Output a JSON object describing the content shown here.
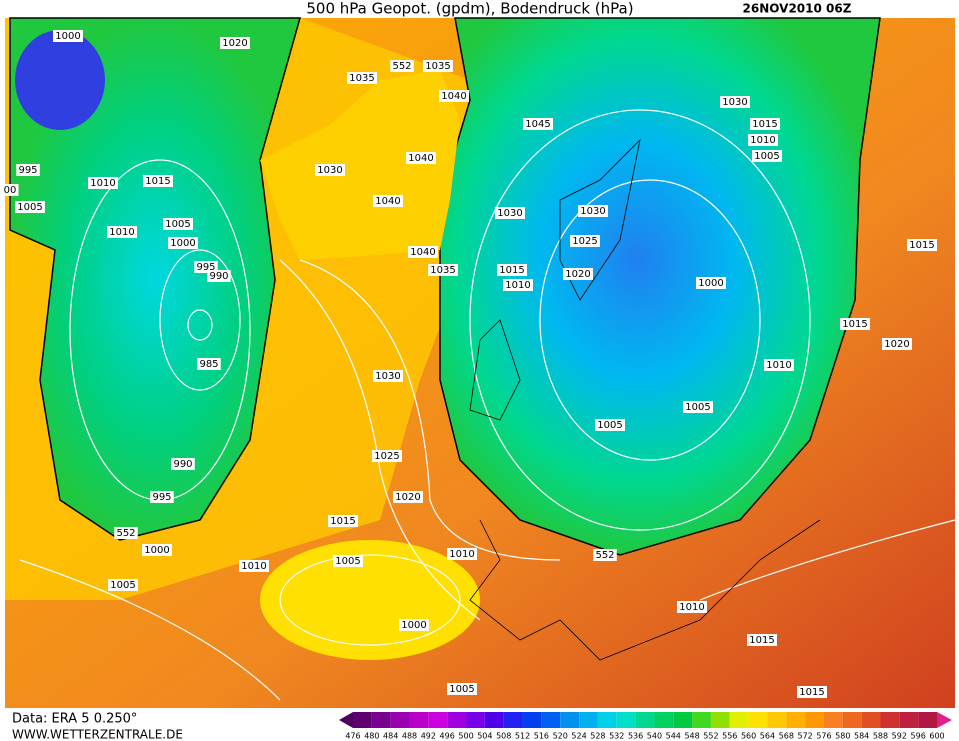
{
  "header": {
    "title": "500 hPa Geopot. (gpdm), Bodendruck (hPa)",
    "date": "26NOV2010 06Z"
  },
  "footer": {
    "source": "Data: ERA 5 0.250°",
    "website": "WWW.WETTERZENTRALE.DE"
  },
  "colorbar": {
    "ticks": [
      476,
      480,
      484,
      488,
      492,
      496,
      500,
      504,
      508,
      512,
      516,
      520,
      524,
      528,
      532,
      536,
      540,
      544,
      548,
      552,
      556,
      560,
      564,
      568,
      572,
      576,
      580,
      584,
      588,
      592,
      596,
      600
    ],
    "colors": [
      "#4b0060",
      "#600070",
      "#7a0090",
      "#9a00b0",
      "#b800c8",
      "#cc00e0",
      "#a000e0",
      "#7800e8",
      "#5000e8",
      "#2020f0",
      "#0040f0",
      "#0060f0",
      "#0090f0",
      "#00b0f0",
      "#00d0e8",
      "#00e0c8",
      "#00d890",
      "#00d060",
      "#00c840",
      "#40d820",
      "#90e000",
      "#e0f000",
      "#ffe000",
      "#ffc800",
      "#ffb000",
      "#ff9800",
      "#f88020",
      "#f06820",
      "#e05020",
      "#d03030",
      "#c02040",
      "#b01840",
      "#e0208c"
    ]
  },
  "map": {
    "labels": [
      "1000",
      "1020",
      "00",
      "995",
      "1005",
      "1010",
      "1015",
      "1010",
      "1005",
      "1000",
      "995",
      "990",
      "985",
      "990",
      "995",
      "1000",
      "1005",
      "1010",
      "552",
      "1035",
      "552",
      "1035",
      "1040",
      "1045",
      "1030",
      "1040",
      "1040",
      "1040",
      "1035",
      "1030",
      "1015",
      "1010",
      "1030",
      "1025",
      "1020",
      "1030",
      "1015",
      "1010",
      "1005",
      "1000",
      "1015",
      "1015",
      "1020",
      "1010",
      "1005",
      "1005",
      "1030",
      "1025",
      "1020",
      "1015",
      "1010",
      "1005",
      "1000",
      "552",
      "1010",
      "1015",
      "1015",
      "1005"
    ]
  }
}
